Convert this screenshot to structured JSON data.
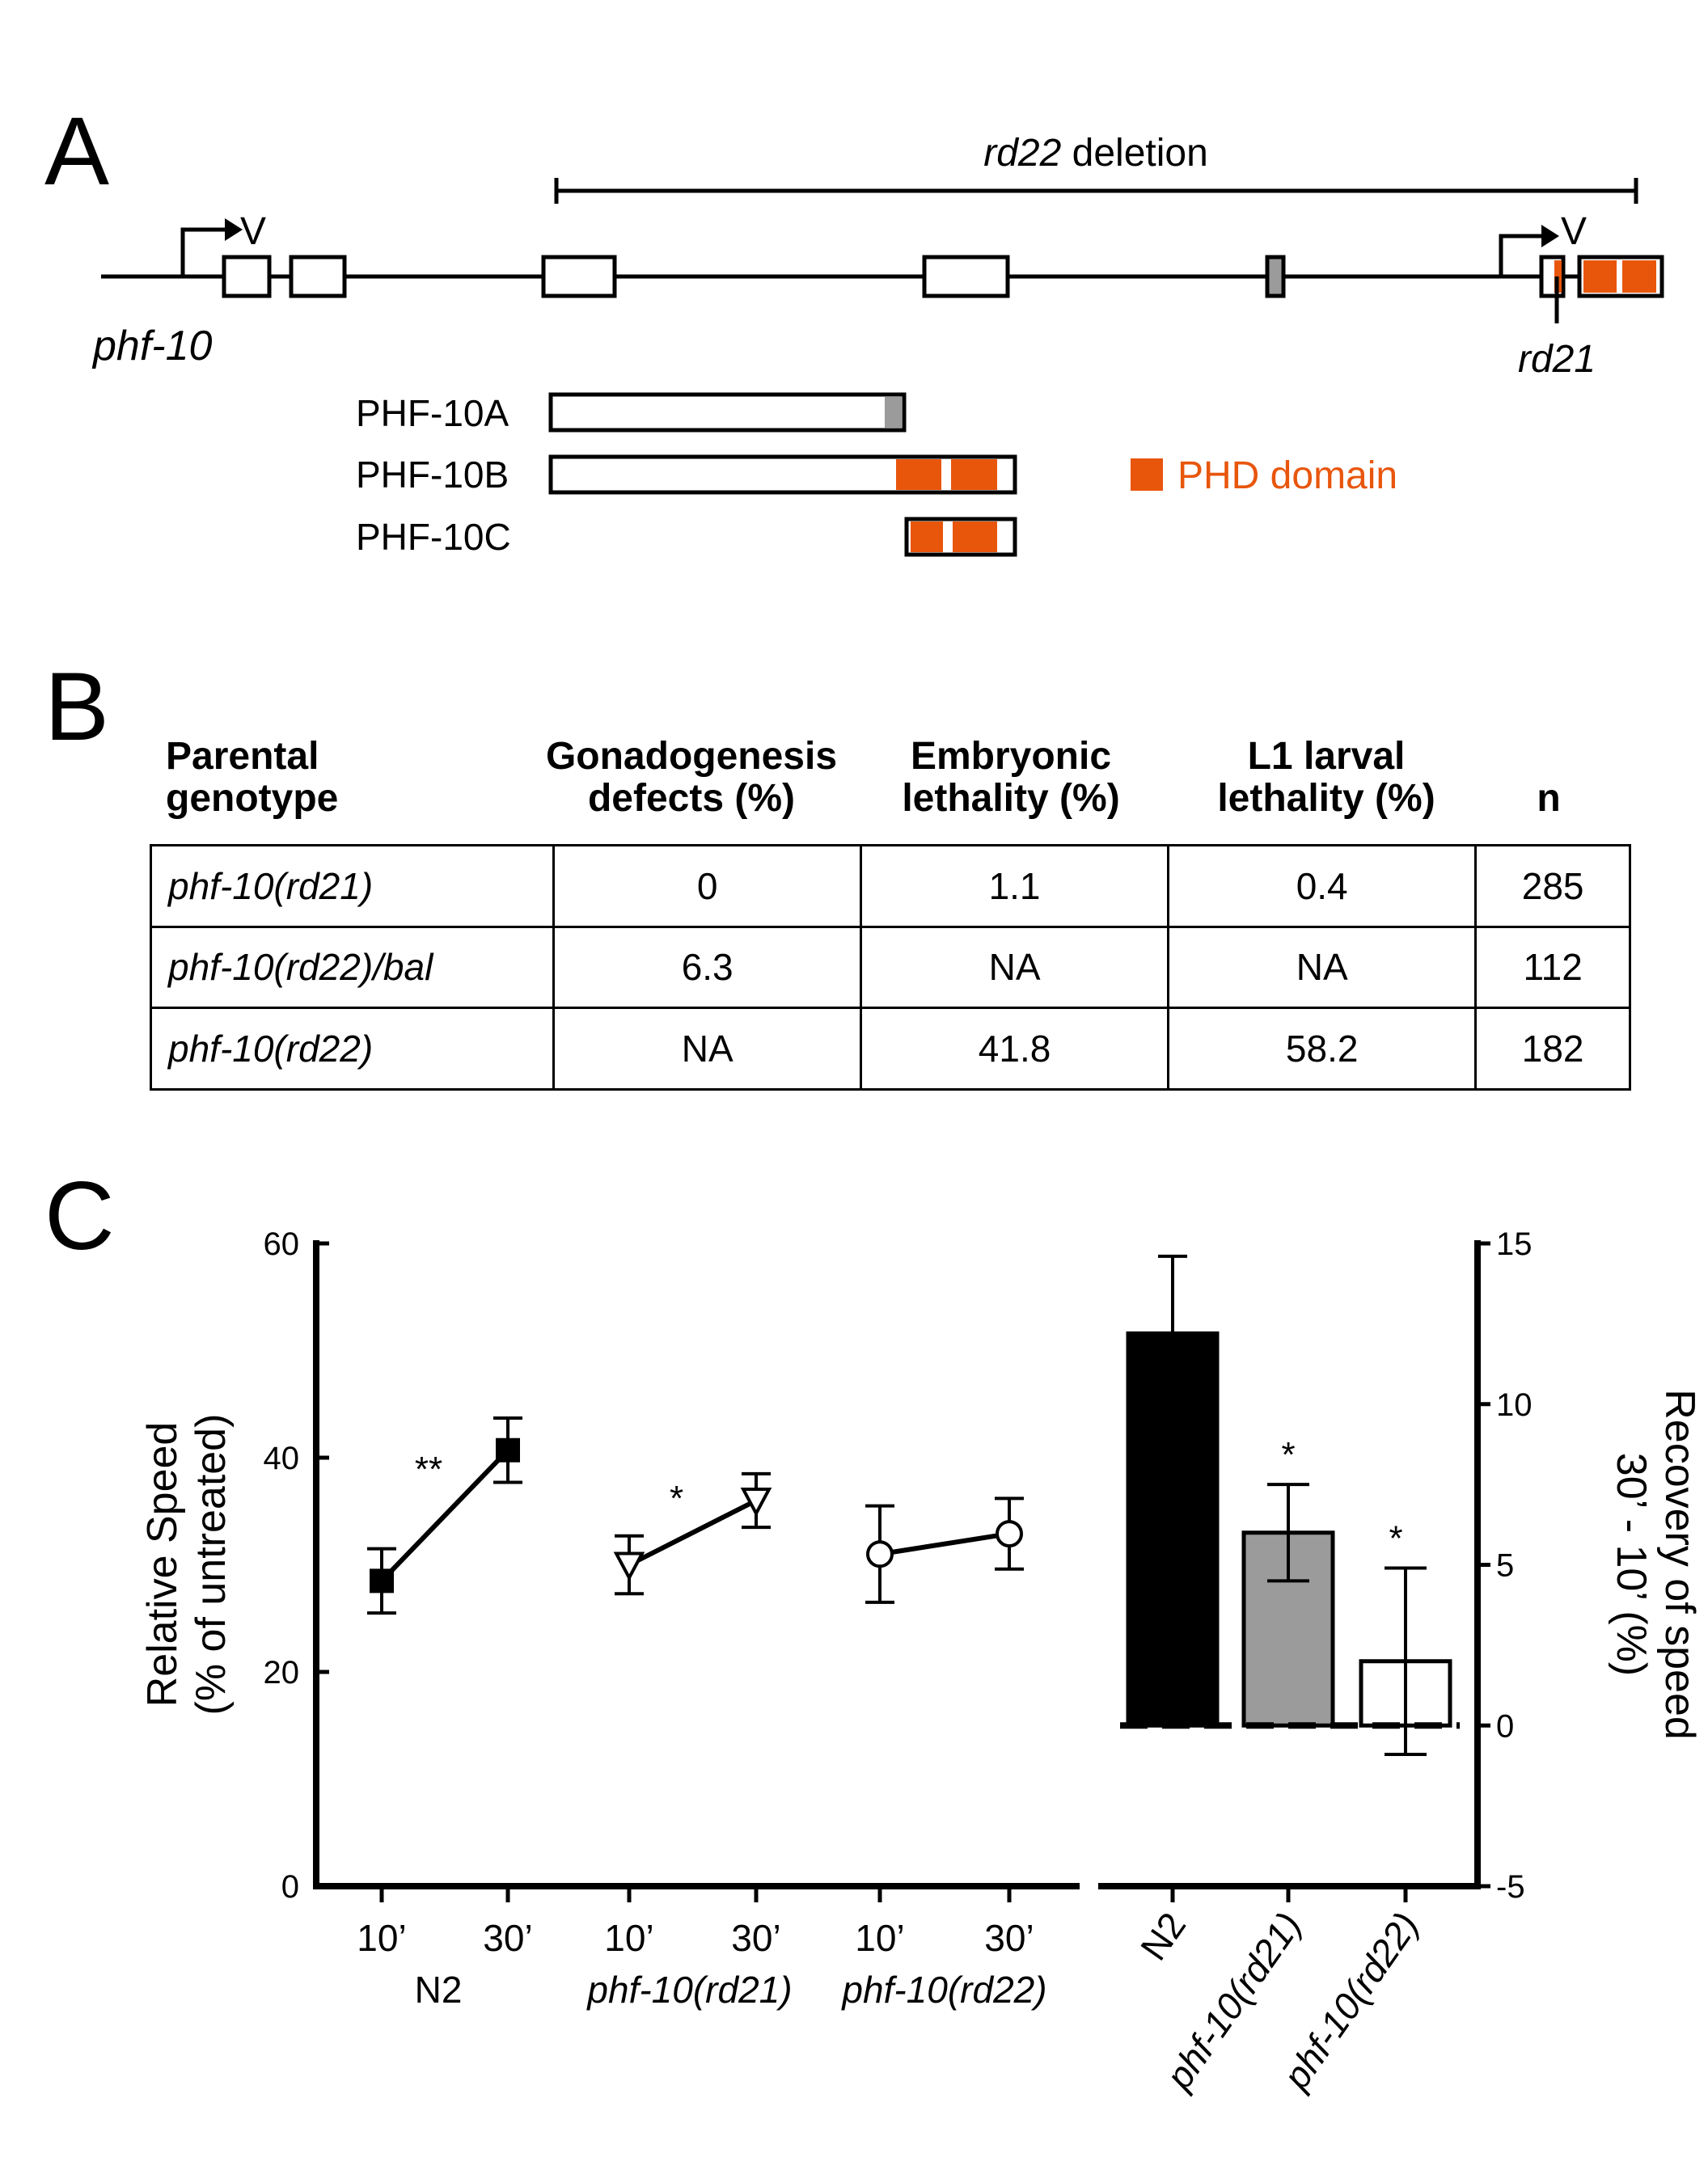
{
  "panels": {
    "a": "A",
    "b": "B",
    "c": "C"
  },
  "colors": {
    "phd": "#E8560C",
    "gray": "#9B9B9B",
    "black": "#000000"
  },
  "gene_diagram": {
    "gene_name": "phf-10",
    "deletion_italic": "rd22",
    "deletion_rest": " deletion",
    "allele_rd21": "rd21",
    "promoter_marker": "V",
    "isoforms": [
      "PHF-10A",
      "PHF-10B",
      "PHF-10C"
    ],
    "legend": "PHD domain"
  },
  "table": {
    "headers": [
      [
        "Parental",
        "genotype"
      ],
      [
        "Gonadogenesis",
        "defects (%)"
      ],
      [
        "Embryonic",
        "lethality (%)"
      ],
      [
        "L1 larval",
        "lethality (%)"
      ],
      [
        "",
        "n"
      ]
    ],
    "rows": [
      {
        "genotype": "phf-10(rd21)",
        "gonad": "0",
        "embryonic": "1.1",
        "l1": "0.4",
        "n": "285"
      },
      {
        "genotype": "phf-10(rd22)/bal",
        "gonad": "6.3",
        "embryonic": "NA",
        "l1": "NA",
        "n": "112"
      },
      {
        "genotype": "phf-10(rd22)",
        "gonad": "NA",
        "embryonic": "41.8",
        "l1": "58.2",
        "n": "182"
      }
    ]
  },
  "chart_data": [
    {
      "type": "line",
      "ylabel_line1": "Relative Speed",
      "ylabel_line2": "(% of untreated)",
      "ylim": [
        0,
        60
      ],
      "yticks": [
        0,
        20,
        40,
        60
      ],
      "x_tick_labels": [
        "10’",
        "30’",
        "10’",
        "30’",
        "10’",
        "30’"
      ],
      "group_labels": [
        "N2",
        "phf-10(rd21)",
        "phf-10(rd22)"
      ],
      "series": [
        {
          "name": "N2",
          "marker": "square",
          "x": [
            "10’",
            "30’"
          ],
          "values": [
            28.5,
            40.7
          ],
          "err": [
            3.0,
            3.0
          ],
          "sig": "**"
        },
        {
          "name": "phf-10(rd21)",
          "marker": "triangle",
          "x": [
            "10’",
            "30’"
          ],
          "values": [
            30.0,
            36.0
          ],
          "err": [
            2.7,
            2.5
          ],
          "sig": "*"
        },
        {
          "name": "phf-10(rd22)",
          "marker": "circle",
          "x": [
            "10’",
            "30’"
          ],
          "values": [
            31.0,
            32.9
          ],
          "err": [
            4.5,
            3.3
          ],
          "sig": ""
        }
      ]
    },
    {
      "type": "bar",
      "ylabel_line1": "Recovery of speed",
      "ylabel_line2": "30’ - 10’ (%)",
      "ylim": [
        -5,
        15
      ],
      "yticks": [
        -5,
        0,
        5,
        10,
        15
      ],
      "categories": [
        "N2",
        "phf-10(rd21)",
        "phf-10(rd22)"
      ],
      "values": [
        12.2,
        6.0,
        2.0
      ],
      "err": [
        2.4,
        1.5,
        2.9
      ],
      "sig": [
        "",
        "*",
        "*"
      ],
      "bar_fills": [
        "#000000",
        "#9B9B9B",
        "#ffffff"
      ]
    }
  ]
}
